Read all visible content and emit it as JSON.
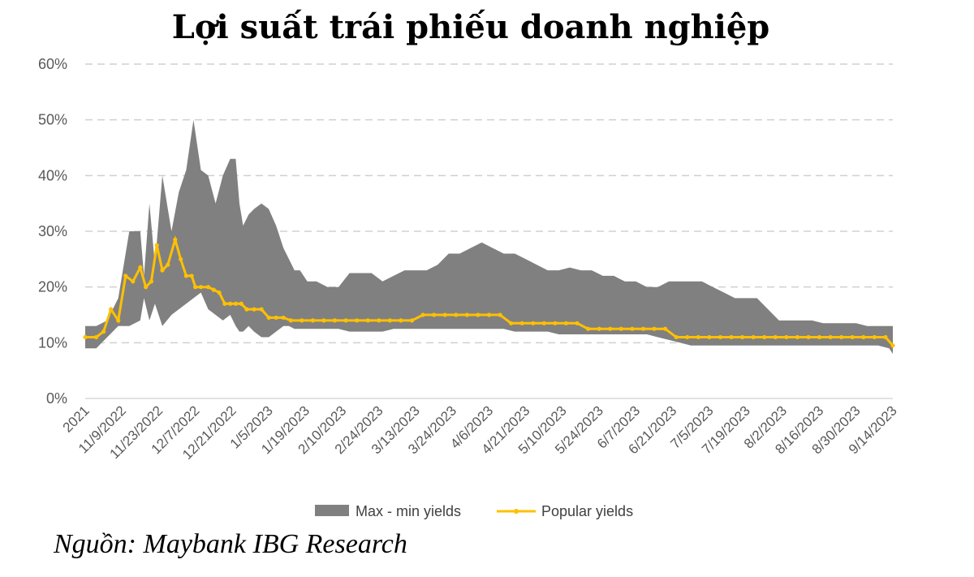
{
  "chart_data": {
    "type": "area",
    "title": "Lợi suất trái phiếu doanh nghiệp",
    "source": "Nguồn: Maybank IBG Research",
    "y_ticks": [
      "0%",
      "10%",
      "20%",
      "30%",
      "40%",
      "50%",
      "60%"
    ],
    "ylim": [
      0,
      60
    ],
    "x_ticks": [
      "2021",
      "11/9/2022",
      "11/23/2022",
      "12/7/2022",
      "12/21/2022",
      "1/5/2023",
      "1/19/2023",
      "2/10/2023",
      "2/24/2023",
      "3/13/2023",
      "3/24/2023",
      "4/6/2023",
      "4/21/2023",
      "5/10/2023",
      "5/24/2023",
      "6/7/2023",
      "6/21/2023",
      "7/5/2023",
      "7/19/2023",
      "8/2/2023",
      "8/16/2023",
      "8/30/2023",
      "9/14/2023"
    ],
    "grid": true,
    "legend_position": "bottom",
    "series": [
      {
        "name": "Max - min yields",
        "kind": "band",
        "color": "#808080",
        "x": [
          0,
          0.3,
          0.6,
          0.9,
          1.2,
          1.5,
          1.6,
          1.75,
          1.9,
          2.1,
          2.35,
          2.55,
          2.75,
          2.95,
          3.15,
          3.35,
          3.55,
          3.75,
          3.95,
          4.1,
          4.2,
          4.3,
          4.45,
          4.6,
          4.8,
          5.0,
          5.2,
          5.4,
          5.55,
          5.7,
          5.85,
          6.05,
          6.3,
          6.6,
          6.9,
          7.2,
          7.5,
          7.8,
          8.1,
          8.4,
          8.7,
          9.0,
          9.3,
          9.6,
          9.9,
          10.2,
          10.5,
          10.8,
          11.1,
          11.4,
          11.7,
          12.0,
          12.3,
          12.6,
          12.9,
          13.2,
          13.5,
          13.8,
          14.1,
          14.4,
          14.7,
          15.0,
          15.3,
          15.6,
          15.9,
          16.2,
          16.5,
          16.8,
          17.1,
          17.4,
          17.7,
          18.0,
          18.3,
          18.6,
          18.9,
          19.2,
          19.5,
          19.8,
          20.1,
          20.4,
          20.7,
          21.0,
          21.3,
          21.6,
          21.9,
          22.0
        ],
        "high": [
          13,
          13,
          14,
          18,
          30,
          30,
          22,
          35,
          24,
          40,
          30,
          37,
          41,
          50,
          41,
          40,
          35,
          40,
          43,
          43,
          35,
          31,
          33,
          34,
          35,
          34,
          31,
          27,
          25,
          23,
          23,
          21,
          21,
          20,
          20,
          22.5,
          22.5,
          22.5,
          21,
          22,
          23,
          23,
          23,
          24,
          26,
          26,
          27,
          28,
          27,
          26,
          26,
          25,
          24,
          23,
          23,
          23.5,
          23,
          23,
          22,
          22,
          21,
          21,
          20,
          20,
          21,
          21,
          21,
          21,
          20,
          19,
          18,
          18,
          18,
          16,
          14,
          14,
          14,
          14,
          13.5,
          13.5,
          13.5,
          13.5,
          13,
          13,
          13,
          13
        ],
        "low": [
          9,
          9,
          11,
          13,
          13,
          14,
          18,
          14,
          17,
          13,
          15,
          16,
          17,
          18,
          19,
          16,
          15,
          14,
          15,
          13,
          12,
          12,
          13,
          12,
          11,
          11,
          12,
          13,
          13,
          12.5,
          12.5,
          12.5,
          12.5,
          12.5,
          12.5,
          12,
          12,
          12,
          12,
          12.5,
          12.5,
          12.5,
          12.5,
          12.5,
          12.5,
          12.5,
          12.5,
          12.5,
          12.5,
          12.5,
          12,
          12,
          12,
          12,
          11.5,
          11.5,
          11.5,
          11.5,
          11.5,
          11.5,
          11.5,
          11.5,
          11.5,
          11,
          10.5,
          10,
          9.5,
          9.5,
          9.5,
          9.5,
          9.5,
          9.5,
          9.5,
          9.5,
          9.5,
          9.5,
          9.5,
          9.5,
          9.5,
          9.5,
          9.5,
          9.5,
          9.5,
          9.5,
          9,
          8
        ]
      },
      {
        "name": "Popular yields",
        "kind": "line",
        "color": "#FFC000",
        "x": [
          0,
          0.3,
          0.5,
          0.7,
          0.9,
          1.1,
          1.3,
          1.5,
          1.65,
          1.8,
          1.95,
          2.1,
          2.25,
          2.45,
          2.6,
          2.75,
          2.9,
          3.0,
          3.15,
          3.35,
          3.5,
          3.65,
          3.8,
          3.95,
          4.1,
          4.25,
          4.4,
          4.6,
          4.8,
          5.0,
          5.2,
          5.4,
          5.6,
          5.9,
          6.2,
          6.5,
          6.8,
          7.1,
          7.4,
          7.7,
          8.0,
          8.3,
          8.6,
          8.9,
          9.2,
          9.5,
          9.8,
          10.1,
          10.4,
          10.7,
          11.0,
          11.3,
          11.6,
          11.9,
          12.2,
          12.5,
          12.8,
          13.1,
          13.4,
          13.7,
          14.0,
          14.3,
          14.6,
          14.9,
          15.2,
          15.5,
          15.8,
          16.1,
          16.4,
          16.7,
          17.0,
          17.3,
          17.6,
          17.9,
          18.2,
          18.5,
          18.8,
          19.1,
          19.4,
          19.7,
          20.0,
          20.3,
          20.6,
          20.9,
          21.2,
          21.5,
          21.8,
          22.0
        ],
        "values": [
          11,
          11,
          12,
          16,
          14,
          22,
          21,
          23.5,
          20,
          21,
          27.5,
          23,
          24,
          28.5,
          25,
          22,
          22,
          20,
          20,
          20,
          19.5,
          19,
          17,
          17,
          17,
          17,
          16,
          16,
          16,
          14.5,
          14.5,
          14.5,
          14,
          14,
          14,
          14,
          14,
          14,
          14,
          14,
          14,
          14,
          14,
          14,
          15,
          15,
          15,
          15,
          15,
          15,
          15,
          15,
          13.5,
          13.5,
          13.5,
          13.5,
          13.5,
          13.5,
          13.5,
          12.5,
          12.5,
          12.5,
          12.5,
          12.5,
          12.5,
          12.5,
          12.5,
          11,
          11,
          11,
          11,
          11,
          11,
          11,
          11,
          11,
          11,
          11,
          11,
          11,
          11,
          11,
          11,
          11,
          11,
          11,
          11,
          9.5
        ]
      }
    ]
  }
}
